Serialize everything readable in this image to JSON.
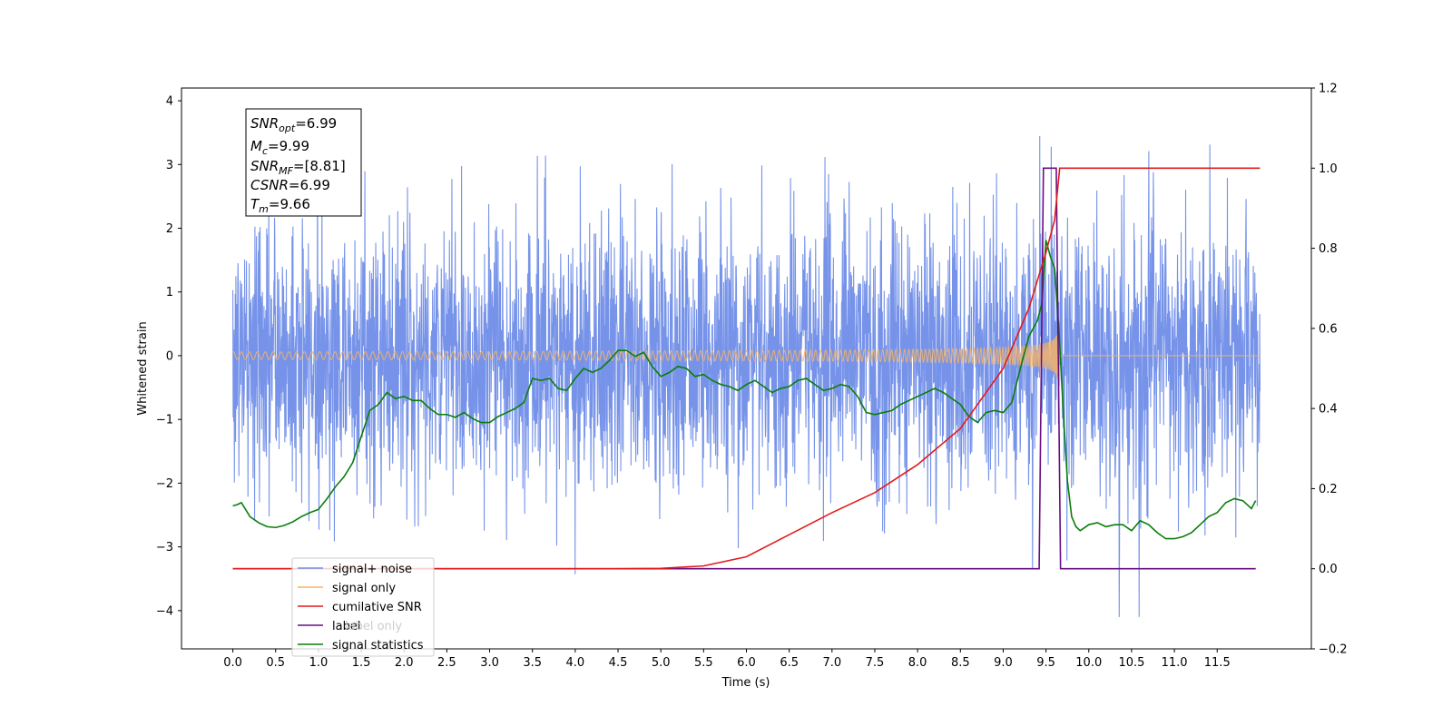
{
  "chart_data": {
    "type": "line",
    "xlabel": "Time (s)",
    "ylabel": "Whitened strain",
    "xlim": [
      -0.6,
      12.6
    ],
    "ylim": [
      -4.6,
      4.2
    ],
    "y2lim": [
      -0.2,
      1.2
    ],
    "x_ticks": [
      0.0,
      0.5,
      1.0,
      1.5,
      2.0,
      2.5,
      3.0,
      3.5,
      4.0,
      4.5,
      5.0,
      5.5,
      6.0,
      6.5,
      7.0,
      7.5,
      8.0,
      8.5,
      9.0,
      9.5,
      10.0,
      10.5,
      11.0,
      11.5
    ],
    "x_tick_labels": [
      "0.0",
      "0.5",
      "1.0",
      "1.5",
      "2.0",
      "2.5",
      "3.0",
      "3.5",
      "4.0",
      "4.5",
      "5.0",
      "5.5",
      "6.0",
      "6.5",
      "7.0",
      "7.5",
      "8.0",
      "8.5",
      "9.0",
      "9.5",
      "10.0",
      "10.5",
      "11.0",
      "11.5"
    ],
    "y_ticks": [
      4,
      3,
      2,
      1,
      0,
      -1,
      -2,
      -3,
      -4
    ],
    "y_tick_labels": [
      "4",
      "3",
      "2",
      "1",
      "0",
      "−1",
      "−2",
      "−3",
      "−4"
    ],
    "y2_ticks": [
      1.2,
      1.0,
      0.8,
      0.6,
      0.4,
      0.2,
      0.0,
      -0.2
    ],
    "y2_tick_labels": [
      "1.2",
      "1.0",
      "0.8",
      "0.6",
      "0.4",
      "0.2",
      "0.0",
      "−0.2"
    ],
    "noise": {
      "t_start": 0.0,
      "t_end": 12.0,
      "sigma": 1.05,
      "max": 3.85,
      "min": -4.1
    },
    "chirp": {
      "merger_time": 9.66,
      "amplitude_peak": 0.55
    },
    "series": [
      {
        "name": "signal+ noise",
        "color": "#6f8de8",
        "axis": "left"
      },
      {
        "name": "signal only",
        "color": "#f5b46a",
        "axis": "left"
      },
      {
        "name": "cumilative SNR",
        "color": "#e31a1c",
        "axis": "right",
        "x": [
          0.0,
          4.5,
          5.0,
          5.5,
          6.0,
          6.5,
          7.0,
          7.5,
          8.0,
          8.5,
          9.0,
          9.3,
          9.5,
          9.6,
          9.66,
          12.0
        ],
        "y": [
          0.0,
          0.0,
          0.001,
          0.007,
          0.03,
          0.085,
          0.14,
          0.19,
          0.26,
          0.35,
          0.5,
          0.65,
          0.79,
          0.87,
          1.0,
          1.0
        ]
      },
      {
        "name": "label",
        "color": "#6a0d83",
        "axis": "right",
        "x": [
          0.0,
          9.42,
          9.47,
          9.62,
          9.67,
          11.95
        ],
        "y": [
          0.0,
          0.0,
          1.0,
          1.0,
          0.0,
          0.0
        ]
      },
      {
        "name": "label only",
        "color": "#cccccc",
        "axis": "right"
      },
      {
        "name": "signal statistics",
        "color": "#0a7d0a",
        "axis": "right",
        "x": [
          0.0,
          0.05,
          0.1,
          0.2,
          0.3,
          0.4,
          0.5,
          0.6,
          0.7,
          0.8,
          0.9,
          1.0,
          1.1,
          1.2,
          1.3,
          1.4,
          1.5,
          1.6,
          1.7,
          1.8,
          1.9,
          2.0,
          2.1,
          2.2,
          2.3,
          2.4,
          2.5,
          2.6,
          2.7,
          2.8,
          2.9,
          3.0,
          3.1,
          3.2,
          3.3,
          3.4,
          3.5,
          3.6,
          3.7,
          3.8,
          3.9,
          4.0,
          4.1,
          4.2,
          4.3,
          4.4,
          4.5,
          4.6,
          4.7,
          4.8,
          4.9,
          5.0,
          5.1,
          5.2,
          5.3,
          5.4,
          5.5,
          5.6,
          5.7,
          5.8,
          5.9,
          6.0,
          6.1,
          6.2,
          6.3,
          6.4,
          6.5,
          6.6,
          6.7,
          6.8,
          6.9,
          7.0,
          7.1,
          7.2,
          7.3,
          7.4,
          7.5,
          7.6,
          7.7,
          7.8,
          7.9,
          8.0,
          8.1,
          8.2,
          8.3,
          8.4,
          8.5,
          8.6,
          8.7,
          8.8,
          8.9,
          9.0,
          9.1,
          9.2,
          9.3,
          9.35,
          9.4,
          9.45,
          9.5,
          9.55,
          9.6,
          9.65,
          9.7,
          9.75,
          9.8,
          9.85,
          9.9,
          10.0,
          10.1,
          10.2,
          10.3,
          10.4,
          10.5,
          10.6,
          10.7,
          10.8,
          10.9,
          11.0,
          11.1,
          11.2,
          11.3,
          11.4,
          11.5,
          11.6,
          11.7,
          11.8,
          11.9,
          11.95
        ],
        "y": [
          0.157,
          0.16,
          0.165,
          0.13,
          0.115,
          0.105,
          0.103,
          0.108,
          0.117,
          0.13,
          0.14,
          0.148,
          0.175,
          0.205,
          0.23,
          0.265,
          0.33,
          0.395,
          0.41,
          0.44,
          0.425,
          0.43,
          0.42,
          0.42,
          0.4,
          0.385,
          0.385,
          0.378,
          0.39,
          0.375,
          0.365,
          0.365,
          0.38,
          0.39,
          0.4,
          0.415,
          0.475,
          0.47,
          0.475,
          0.45,
          0.445,
          0.475,
          0.5,
          0.49,
          0.5,
          0.52,
          0.545,
          0.545,
          0.53,
          0.54,
          0.505,
          0.48,
          0.49,
          0.505,
          0.5,
          0.48,
          0.485,
          0.47,
          0.46,
          0.455,
          0.445,
          0.46,
          0.47,
          0.455,
          0.44,
          0.45,
          0.455,
          0.47,
          0.475,
          0.46,
          0.445,
          0.45,
          0.46,
          0.455,
          0.43,
          0.39,
          0.385,
          0.39,
          0.395,
          0.41,
          0.42,
          0.43,
          0.44,
          0.45,
          0.44,
          0.425,
          0.41,
          0.38,
          0.365,
          0.39,
          0.395,
          0.39,
          0.415,
          0.5,
          0.58,
          0.6,
          0.62,
          0.66,
          0.82,
          0.78,
          0.75,
          0.6,
          0.4,
          0.22,
          0.13,
          0.105,
          0.095,
          0.11,
          0.115,
          0.105,
          0.11,
          0.11,
          0.095,
          0.12,
          0.11,
          0.09,
          0.075,
          0.075,
          0.08,
          0.09,
          0.11,
          0.13,
          0.14,
          0.165,
          0.175,
          0.17,
          0.15,
          0.17
        ]
      }
    ],
    "legend_placement": "lower-left",
    "legend_labels": [
      "signal+ noise",
      "signal only",
      "cumilative SNR",
      "label",
      "label only",
      "signal statistics"
    ],
    "annotation": {
      "snr_opt": "6.99",
      "mc": "9.99",
      "snr_mf": "[8.81]",
      "csnr": "6.99",
      "tm": "9.66"
    }
  }
}
